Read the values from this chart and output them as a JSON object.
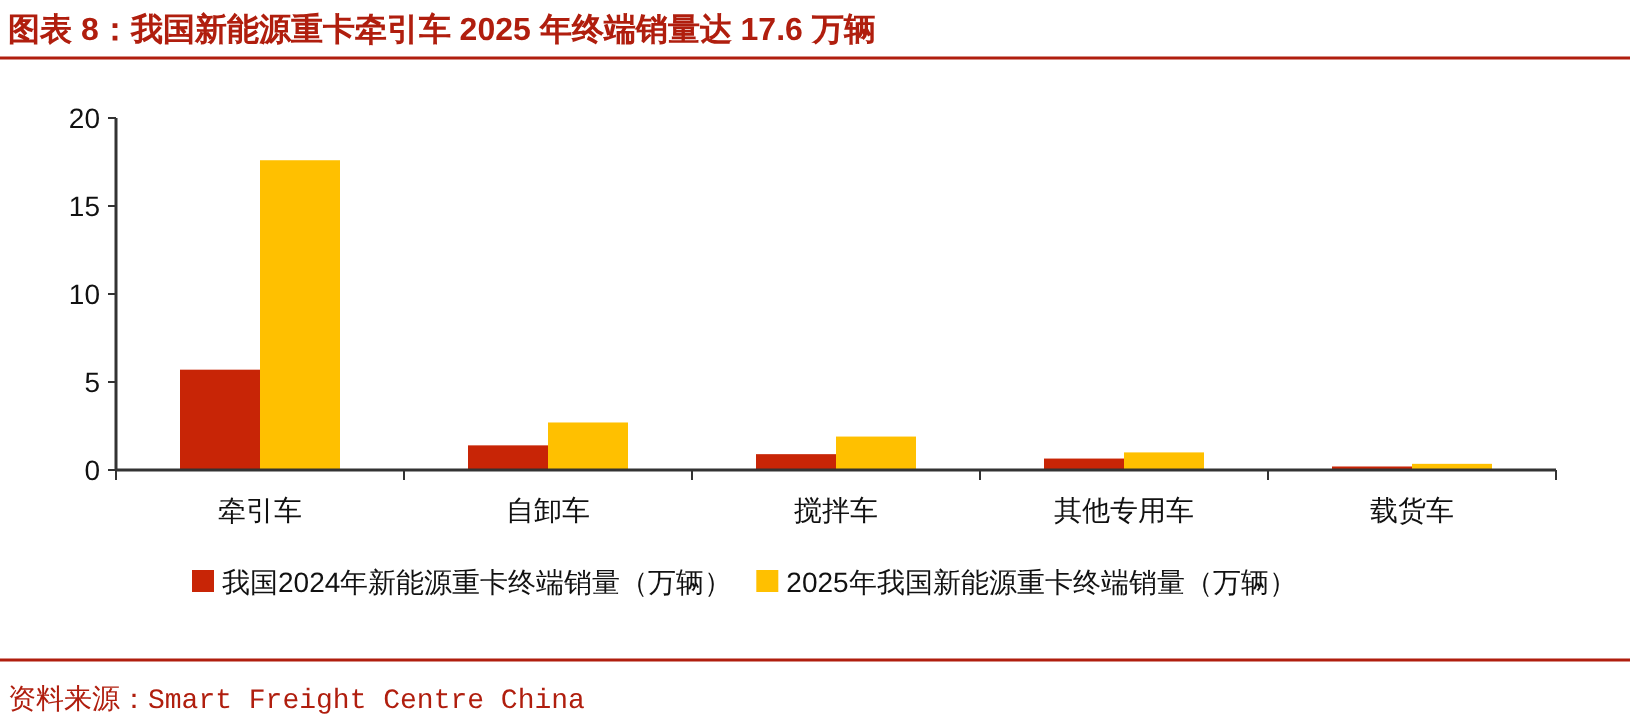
{
  "chart_data": {
    "type": "bar",
    "title": "图表 8：我国新能源重卡牵引车 2025 年终端销量达 17.6 万辆",
    "categories": [
      "牵引车",
      "自卸车",
      "搅拌车",
      "其他专用车",
      "载货车"
    ],
    "series": [
      {
        "name": "我国2024年新能源重卡终端销量（万辆）",
        "color": "#c82506",
        "values": [
          5.7,
          1.4,
          0.9,
          0.65,
          0.2
        ]
      },
      {
        "name": "2025年我国新能源重卡终端销量（万辆）",
        "color": "#ffc000",
        "values": [
          17.6,
          2.7,
          1.9,
          1.0,
          0.35
        ]
      }
    ],
    "ylim": [
      0,
      20
    ],
    "yticks": [
      0,
      5,
      10,
      15,
      20
    ],
    "grid": false,
    "legend": "bottom",
    "annotations": [
      "资料来源：Smart Freight Centre China"
    ]
  }
}
